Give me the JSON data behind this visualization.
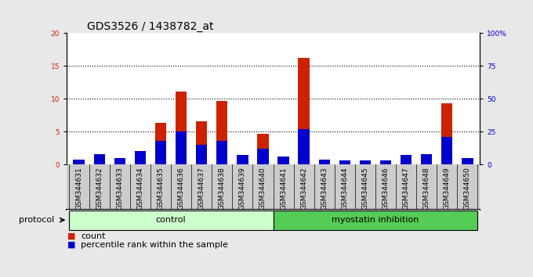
{
  "title": "GDS3526 / 1438782_at",
  "samples": [
    "GSM344631",
    "GSM344632",
    "GSM344633",
    "GSM344634",
    "GSM344635",
    "GSM344636",
    "GSM344637",
    "GSM344638",
    "GSM344639",
    "GSM344640",
    "GSM344641",
    "GSM344642",
    "GSM344643",
    "GSM344644",
    "GSM344645",
    "GSM344646",
    "GSM344647",
    "GSM344648",
    "GSM344649",
    "GSM344650"
  ],
  "count": [
    0.3,
    1.1,
    0.8,
    1.9,
    6.4,
    11.1,
    6.6,
    9.7,
    0.4,
    4.7,
    1.1,
    16.2,
    0.6,
    0.2,
    0.3,
    0.3,
    1.1,
    1.2,
    9.3,
    0.3
  ],
  "percentile": [
    4,
    8,
    5,
    10,
    18,
    25,
    15,
    18,
    7,
    12,
    6,
    27,
    4,
    3,
    3,
    3,
    7,
    8,
    21,
    5
  ],
  "groups": [
    {
      "label": "control",
      "color": "#ccffcc",
      "start": 0,
      "end": 9
    },
    {
      "label": "myostatin inhibition",
      "color": "#55cc55",
      "start": 10,
      "end": 19
    }
  ],
  "left_ylim": [
    0,
    20
  ],
  "right_ylim": [
    0,
    100
  ],
  "left_yticks": [
    0,
    5,
    10,
    15,
    20
  ],
  "right_yticks": [
    0,
    25,
    50,
    75,
    100
  ],
  "right_yticklabels": [
    "0",
    "25",
    "50",
    "75",
    "100%"
  ],
  "bar_color_count": "#cc2200",
  "bar_color_pct": "#0000cc",
  "bar_width": 0.55,
  "grid_color": "#000000",
  "bg_color": "#e8e8e8",
  "plot_bg": "#ffffff",
  "title_fontsize": 10,
  "tick_fontsize": 6.5,
  "legend_fontsize": 8,
  "protocol_label": "protocol",
  "left_axis_color": "#cc2200",
  "right_axis_color": "#0000cc",
  "xlabel_bg": "#cccccc"
}
